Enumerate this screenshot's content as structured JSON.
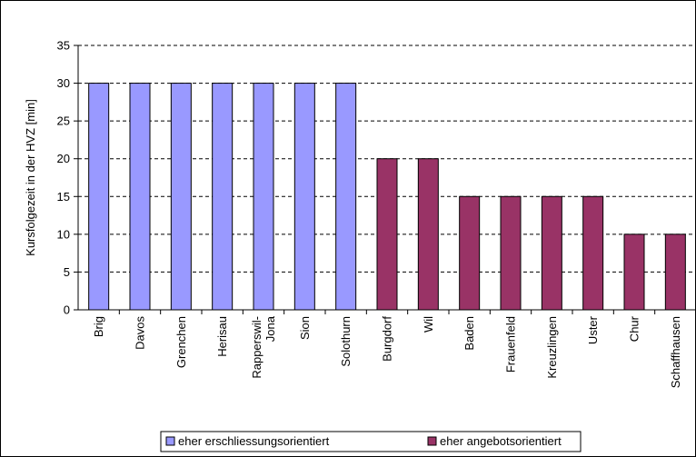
{
  "chart_data": {
    "type": "bar",
    "title": "",
    "ylabel": "Kursfolgezeit in der HVZ [min]",
    "xlabel": "",
    "ylim": [
      0,
      35
    ],
    "yticks": [
      0,
      5,
      10,
      15,
      20,
      25,
      30,
      35
    ],
    "grid": "horizontal dashed",
    "legend_position": "bottom",
    "categories": [
      "Brig",
      "Davos",
      "Grenchen",
      "Herisau",
      "Rapperswil-Jona",
      "Sion",
      "Solothurn",
      "Burgdorf",
      "Wil",
      "Baden",
      "Frauenfeld",
      "Kreuzlingen",
      "Uster",
      "Chur",
      "Schaffhausen"
    ],
    "category_lines": [
      [
        "Brig"
      ],
      [
        "Davos"
      ],
      [
        "Grenchen"
      ],
      [
        "Herisau"
      ],
      [
        "Rapperswil-",
        "Jona"
      ],
      [
        "Sion"
      ],
      [
        "Solothurn"
      ],
      [
        "Burgdorf"
      ],
      [
        "Wil"
      ],
      [
        "Baden"
      ],
      [
        "Frauenfeld"
      ],
      [
        "Kreuzlingen"
      ],
      [
        "Uster"
      ],
      [
        "Chur"
      ],
      [
        "Schaffhausen"
      ]
    ],
    "values": [
      30,
      30,
      30,
      30,
      30,
      30,
      30,
      20,
      20,
      15,
      15,
      15,
      15,
      10,
      10
    ],
    "bar_group": [
      0,
      0,
      0,
      0,
      0,
      0,
      0,
      1,
      1,
      1,
      1,
      1,
      1,
      1,
      1
    ],
    "series": [
      {
        "name": "eher erschliessungsorientiert",
        "color": "#9999ff"
      },
      {
        "name": "eher angebotsorientiert",
        "color": "#993366"
      }
    ]
  }
}
